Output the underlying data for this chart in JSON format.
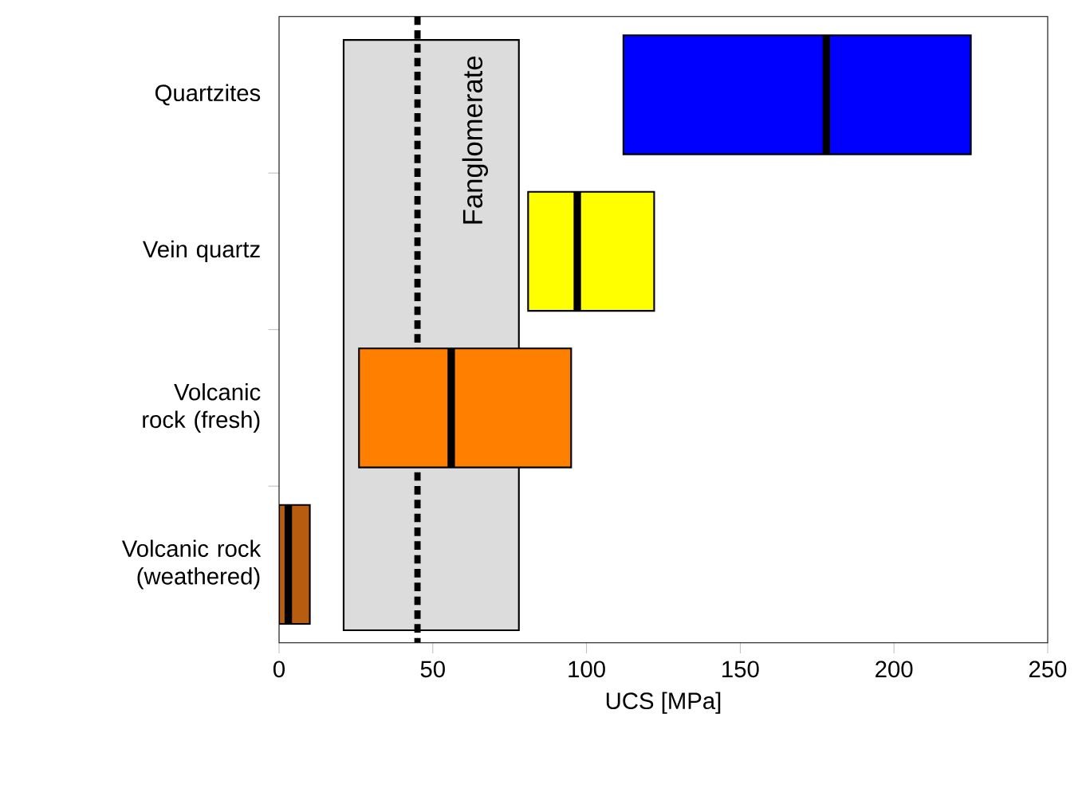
{
  "chart_data": {
    "type": "box",
    "orientation": "horizontal",
    "xlabel": "UCS [MPa]",
    "categories": [
      "Quartzites",
      "Vein quartz",
      "Volcanic rock (fresh)",
      "Volcanic rock (weathered)"
    ],
    "colors": [
      "#0000ff",
      "#ffff00",
      "#ff8000",
      "#b85c10"
    ],
    "boxes": [
      {
        "low": 112,
        "q1": 112,
        "median": 178,
        "q3": 225,
        "high": 225
      },
      {
        "low": 81,
        "q1": 81,
        "median": 97,
        "q3": 122,
        "high": 122
      },
      {
        "low": 26,
        "q1": 26,
        "median": 56,
        "q3": 95,
        "high": 95
      },
      {
        "low": 0,
        "q1": 0,
        "median": 3,
        "q3": 10,
        "high": 10
      }
    ],
    "xlim": [
      0,
      250
    ],
    "xticks": [
      0,
      50,
      100,
      150,
      200,
      250
    ],
    "bands": [
      {
        "axis": "x",
        "from": 21,
        "to": 78,
        "label": "Fanglomerate",
        "color": "#dcdcdc"
      }
    ],
    "ref_lines": [
      {
        "axis": "x",
        "value": 45,
        "line_style": "dashed"
      }
    ]
  }
}
